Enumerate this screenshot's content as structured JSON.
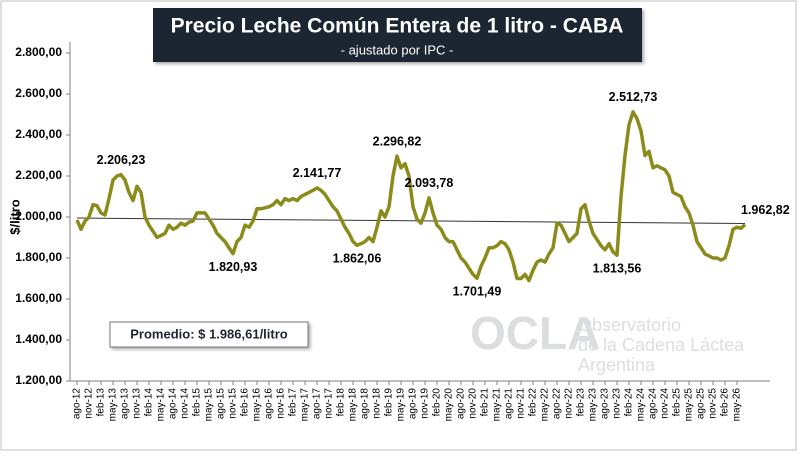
{
  "chart_data": {
    "type": "line",
    "title": "Precio Leche Común Entera de 1 litro - CABA",
    "subtitle": "- ajustado por IPC -",
    "y_label": "$/litro",
    "average_note": "Promedio: $ 1.986,61/litro",
    "watermark": {
      "logo": "OCLA",
      "lines": [
        "Observatorio",
        "de la Cadena Láctea",
        "Argentina"
      ]
    },
    "categories": [
      "ago-12",
      null,
      null,
      "nov-12",
      null,
      null,
      "feb-13",
      null,
      null,
      "may-13",
      null,
      null,
      "ago-13",
      null,
      null,
      "nov-13",
      null,
      null,
      "feb-14",
      null,
      null,
      "may-14",
      null,
      null,
      "ago-14",
      null,
      null,
      "nov-14",
      null,
      null,
      "feb-15",
      null,
      null,
      "may-15",
      null,
      null,
      "ago-15",
      null,
      null,
      "nov-15",
      null,
      null,
      "feb-16",
      null,
      null,
      "may-16",
      null,
      null,
      "ago-16",
      null,
      null,
      "nov-16",
      null,
      null,
      "feb-17",
      null,
      null,
      "may-17",
      null,
      null,
      "ago-17",
      null,
      null,
      "nov-17",
      null,
      null,
      "feb-18",
      null,
      null,
      "may-18",
      null,
      null,
      "ago-18",
      null,
      null,
      "nov-18",
      null,
      null,
      "feb-19",
      null,
      null,
      "may-19",
      null,
      null,
      "ago-19",
      null,
      null,
      "nov-19",
      null,
      null,
      "feb-20",
      null,
      null,
      "may-20",
      null,
      null,
      "ago-20",
      null,
      null,
      "nov-20",
      null,
      null,
      "feb-21",
      null,
      null,
      "may-21",
      null,
      null,
      "ago-21",
      null,
      null,
      "nov-21",
      null,
      null,
      "feb-22",
      null,
      null,
      "may-22",
      null,
      null,
      "ago-22",
      null,
      null,
      "nov-22",
      null,
      null,
      "feb-23",
      null,
      null,
      "may-23",
      null,
      null,
      "ago-23",
      null,
      null,
      "nov-23",
      null,
      null,
      "feb-24",
      null,
      null,
      "may-24",
      null,
      null,
      "ago-24",
      null,
      null,
      "nov-24",
      null,
      null,
      "feb-25",
      null,
      null,
      "may-25",
      null,
      null,
      "ago-25",
      null,
      null,
      "nov-25",
      null,
      null,
      "feb-26",
      null,
      null,
      "may-26",
      null,
      null
    ],
    "series": [
      {
        "name": "Precio",
        "color": "#8b8b1c",
        "values": [
          1985,
          1940,
          1980,
          2000,
          2060,
          2055,
          2020,
          2010,
          2090,
          2180,
          2200,
          2206.23,
          2180,
          2120,
          2080,
          2150,
          2120,
          2000,
          1960,
          1930,
          1900,
          1910,
          1920,
          1960,
          1940,
          1950,
          1970,
          1960,
          1975,
          1980,
          2020,
          2020,
          2020,
          1990,
          1960,
          1920,
          1900,
          1880,
          1850,
          1820.93,
          1880,
          1900,
          1960,
          1950,
          1980,
          2040,
          2040,
          2045,
          2050,
          2060,
          2080,
          2060,
          2090,
          2080,
          2090,
          2080,
          2100,
          2110,
          2120,
          2130,
          2141.77,
          2130,
          2110,
          2080,
          2050,
          2030,
          1990,
          1950,
          1920,
          1880,
          1862.06,
          1870,
          1880,
          1900,
          1880,
          1950,
          2030,
          2000,
          2050,
          2200,
          2296.82,
          2240,
          2260,
          2200,
          2050,
          1990,
          1970,
          2020,
          2093.78,
          2020,
          1960,
          1940,
          1900,
          1880,
          1880,
          1840,
          1800,
          1780,
          1750,
          1720,
          1701.49,
          1760,
          1800,
          1850,
          1850,
          1860,
          1880,
          1870,
          1840,
          1780,
          1700,
          1700,
          1720,
          1690,
          1740,
          1780,
          1790,
          1780,
          1820,
          1850,
          1970,
          1960,
          1920,
          1880,
          1900,
          1920,
          2040,
          2060,
          1980,
          1920,
          1890,
          1860,
          1840,
          1870,
          1830,
          1813.56,
          2100,
          2300,
          2450,
          2512.73,
          2480,
          2420,
          2300,
          2320,
          2240,
          2250,
          2240,
          2230,
          2200,
          2120,
          2110,
          2100,
          2050,
          2020,
          1960,
          1880,
          1850,
          1820,
          1810,
          1800,
          1800,
          1790,
          1800,
          1860,
          1940,
          1950,
          1945,
          1962.82
        ],
        "value_labels": [
          null,
          null,
          null,
          null,
          null,
          null,
          null,
          null,
          null,
          null,
          null,
          "2.206,23",
          null,
          null,
          null,
          null,
          null,
          null,
          null,
          null,
          null,
          null,
          null,
          null,
          null,
          null,
          null,
          null,
          null,
          null,
          null,
          null,
          null,
          null,
          null,
          null,
          null,
          null,
          null,
          "1.820,93",
          null,
          null,
          null,
          null,
          null,
          null,
          null,
          null,
          null,
          null,
          null,
          null,
          null,
          null,
          null,
          null,
          null,
          null,
          null,
          null,
          "2.141,77",
          null,
          null,
          null,
          null,
          null,
          null,
          null,
          null,
          null,
          "1.862,06",
          null,
          null,
          null,
          null,
          null,
          null,
          null,
          null,
          null,
          "2.296,82",
          null,
          null,
          null,
          null,
          null,
          null,
          null,
          "2.093,78",
          null,
          null,
          null,
          null,
          null,
          null,
          null,
          null,
          null,
          null,
          null,
          "1.701,49",
          null,
          null,
          null,
          null,
          null,
          null,
          null,
          null,
          null,
          null,
          null,
          null,
          null,
          null,
          null,
          null,
          null,
          null,
          null,
          null,
          null,
          null,
          null,
          null,
          null,
          null,
          null,
          null,
          null,
          null,
          null,
          null,
          null,
          null,
          "1.813,56",
          null,
          null,
          null,
          "2.512,73",
          null,
          null,
          null,
          null,
          null,
          null,
          null,
          null,
          null,
          null,
          null,
          null,
          null,
          null,
          null,
          null,
          null,
          null,
          null,
          null,
          null,
          null,
          null,
          null,
          null,
          null,
          null,
          "1.962,82"
        ]
      }
    ],
    "trend": [
      1995,
      1968
    ],
    "ylim": [
      1200,
      2800
    ],
    "yticks": [
      {
        "value": 1200,
        "label": "1.200,00"
      },
      {
        "value": 1400,
        "label": "1.400,00"
      },
      {
        "value": 1600,
        "label": "1.600,00"
      },
      {
        "value": 1800,
        "label": "1.800,00"
      },
      {
        "value": 2000,
        "label": "2.000,00"
      },
      {
        "value": 2200,
        "label": "2.200,00"
      },
      {
        "value": 2400,
        "label": "2.400,00"
      },
      {
        "value": 2600,
        "label": "2.600,00"
      },
      {
        "value": 2800,
        "label": "2.800,00"
      }
    ],
    "grid": false
  }
}
